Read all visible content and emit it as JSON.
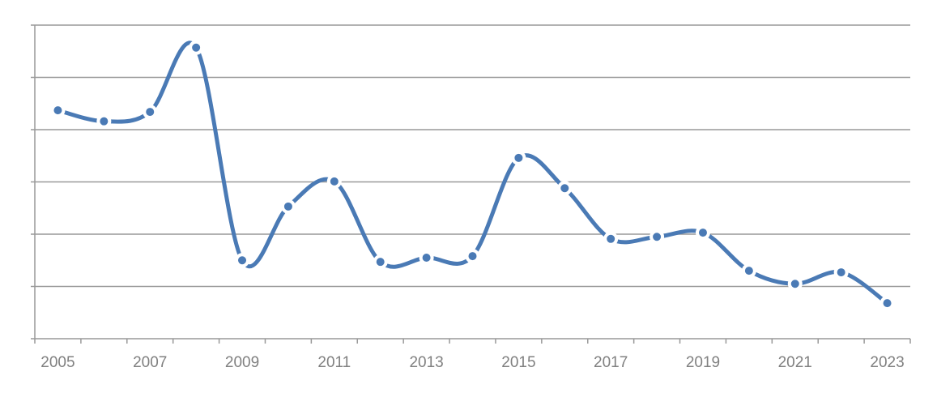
{
  "chart_data": {
    "type": "line",
    "categories": [
      "2005",
      null,
      "2007",
      null,
      "2009",
      null,
      "2011",
      null,
      "2013",
      null,
      "2015",
      null,
      "2017",
      null,
      "2019",
      null,
      "2021",
      null,
      "2023"
    ],
    "series": [
      {
        "color": "#4a7ab5",
        "values": [
          4.37,
          4.16,
          4.34,
          5.57,
          1.5,
          2.53,
          3.01,
          1.47,
          1.55,
          1.58,
          3.46,
          2.88,
          1.91,
          1.95,
          2.03,
          1.3,
          1.05,
          1.27,
          0.68
        ]
      }
    ],
    "ylim": [
      0,
      6
    ],
    "yticks": [
      0,
      1,
      2,
      3,
      4,
      5,
      6
    ],
    "grid": true
  }
}
